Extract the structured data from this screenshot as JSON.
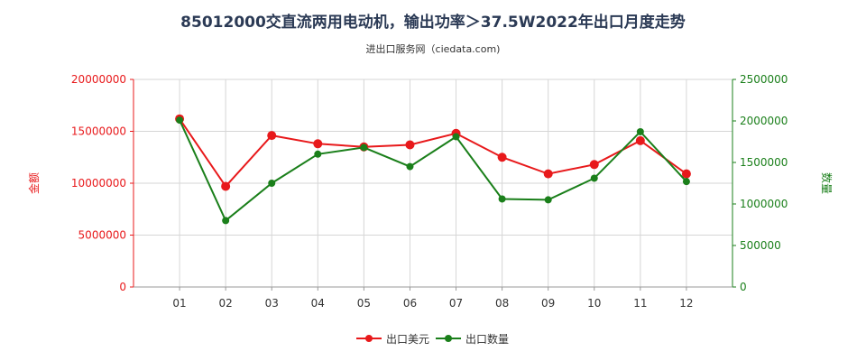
{
  "chart_data": {
    "type": "line",
    "title": "85012000交直流两用电动机，输出功率＞37.5W2022年出口月度走势",
    "subtitle": "进出口服务网（ciedata.com)",
    "categories": [
      "01",
      "02",
      "03",
      "04",
      "05",
      "06",
      "07",
      "08",
      "09",
      "10",
      "11",
      "12"
    ],
    "series": [
      {
        "name": "出口美元",
        "axis": "left",
        "color": "#e8191b",
        "values": [
          16200000,
          9700000,
          14600000,
          13800000,
          13500000,
          13700000,
          14800000,
          12500000,
          10900000,
          11800000,
          14100000,
          10900000
        ]
      },
      {
        "name": "出口数量",
        "axis": "right",
        "color": "#1a7f1a",
        "values": [
          2010000,
          800000,
          1250000,
          1600000,
          1680000,
          1450000,
          1810000,
          1060000,
          1050000,
          1310000,
          1870000,
          1270000
        ]
      }
    ],
    "y_left": {
      "label": "金额",
      "range": [
        0,
        20000000
      ],
      "ticks": [
        "0",
        "5000000",
        "10000000",
        "15000000",
        "20000000"
      ],
      "color": "#e8191b"
    },
    "y_right": {
      "label": "数量",
      "range": [
        0,
        2500000
      ],
      "ticks": [
        "0",
        "500000",
        "1000000",
        "1500000",
        "2000000",
        "2500000"
      ],
      "color": "#1a7f1a"
    },
    "grid": true,
    "legend": "bottom-center"
  }
}
